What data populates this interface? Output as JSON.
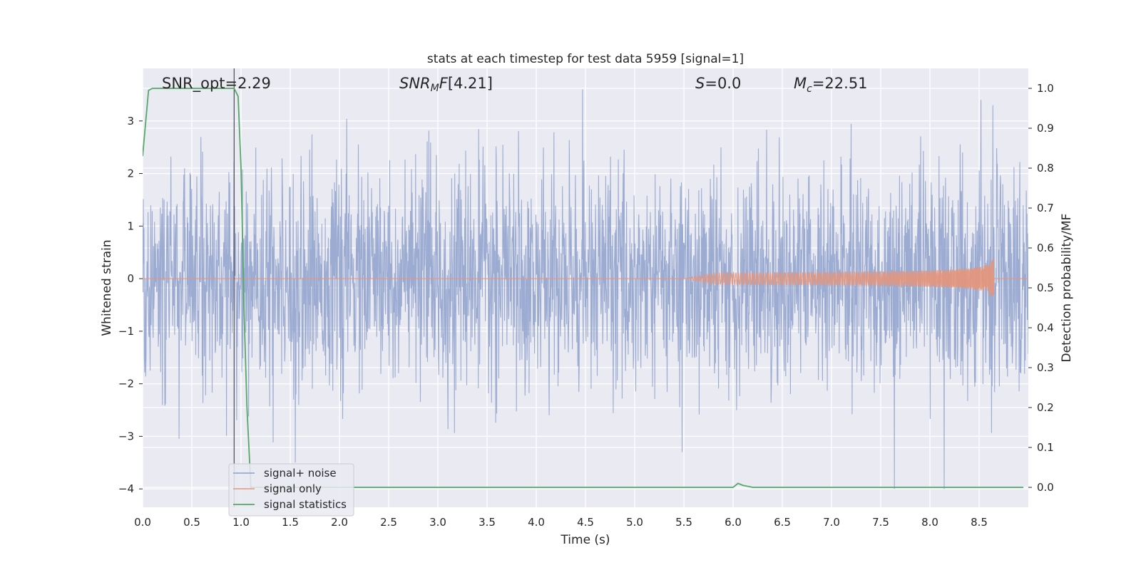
{
  "chart_data": {
    "type": "line",
    "title": "stats at each timestep for test data 5959 [signal=1]",
    "xlabel": "Time (s)",
    "ylabel": "Whitened strain",
    "y2label": "Detection probability/MF",
    "xlim": [
      0.0,
      9.0
    ],
    "ylim": [
      -4.35,
      4.0
    ],
    "y2lim": [
      -0.05,
      1.05
    ],
    "x_ticks": [
      "0.0",
      "0.5",
      "1.0",
      "1.5",
      "2.0",
      "2.5",
      "3.0",
      "3.5",
      "4.0",
      "4.5",
      "5.0",
      "5.5",
      "6.0",
      "6.5",
      "7.0",
      "7.5",
      "8.0",
      "8.5"
    ],
    "y_ticks": [
      "−4",
      "−3",
      "−2",
      "−1",
      "0",
      "1",
      "2",
      "3"
    ],
    "y2_ticks": [
      "0.0",
      "0.1",
      "0.2",
      "0.3",
      "0.4",
      "0.5",
      "0.6",
      "0.7",
      "0.8",
      "0.9",
      "1.0"
    ],
    "grid": true,
    "legend_position": "lower-left",
    "annotations": {
      "snr_opt": "SNR_opt=2.29",
      "snr_mf": "[4.21]",
      "s_stat": "=0.0",
      "mc": "=22.51"
    },
    "vline_x": 0.93,
    "series": [
      {
        "name": "signal+ noise",
        "color": "#8da0cb",
        "axis": "left",
        "amplitude_envelope": {
          "x": [
            0.0,
            9.0
          ],
          "typical": 1.4,
          "peak_max": 3.6,
          "peak_min": -4.0
        },
        "notable_peaks": [
          {
            "x": 0.93,
            "y": 1.3
          },
          {
            "x": 1.55,
            "y": -3.5
          },
          {
            "x": 4.47,
            "y": 3.6
          },
          {
            "x": 5.48,
            "y": -3.3
          },
          {
            "x": 7.64,
            "y": -4.0
          },
          {
            "x": 8.52,
            "y": 3.4
          },
          {
            "x": 8.64,
            "y": 3.3
          }
        ]
      },
      {
        "name": "signal only",
        "color": "#e5957a",
        "axis": "left",
        "chirp": {
          "start_x": 5.5,
          "end_x": 8.65,
          "max_amplitude": 0.45
        }
      },
      {
        "name": "signal statistics",
        "color": "#55a868",
        "axis": "right",
        "x": [
          0.0,
          0.06,
          0.1,
          0.2,
          0.5,
          0.8,
          0.93,
          0.97,
          1.0,
          1.03,
          1.06,
          1.1,
          1.2,
          2.0,
          3.0,
          4.0,
          5.0,
          6.0,
          6.05,
          6.1,
          6.2,
          7.0,
          8.0,
          8.95
        ],
        "y": [
          0.83,
          0.995,
          1.0,
          1.0,
          1.0,
          1.0,
          1.0,
          0.98,
          0.8,
          0.45,
          0.2,
          0.0,
          0.0,
          0.0,
          0.0,
          0.0,
          0.0,
          0.0,
          0.01,
          0.005,
          0.0,
          0.0,
          0.0,
          0.0
        ]
      }
    ]
  }
}
